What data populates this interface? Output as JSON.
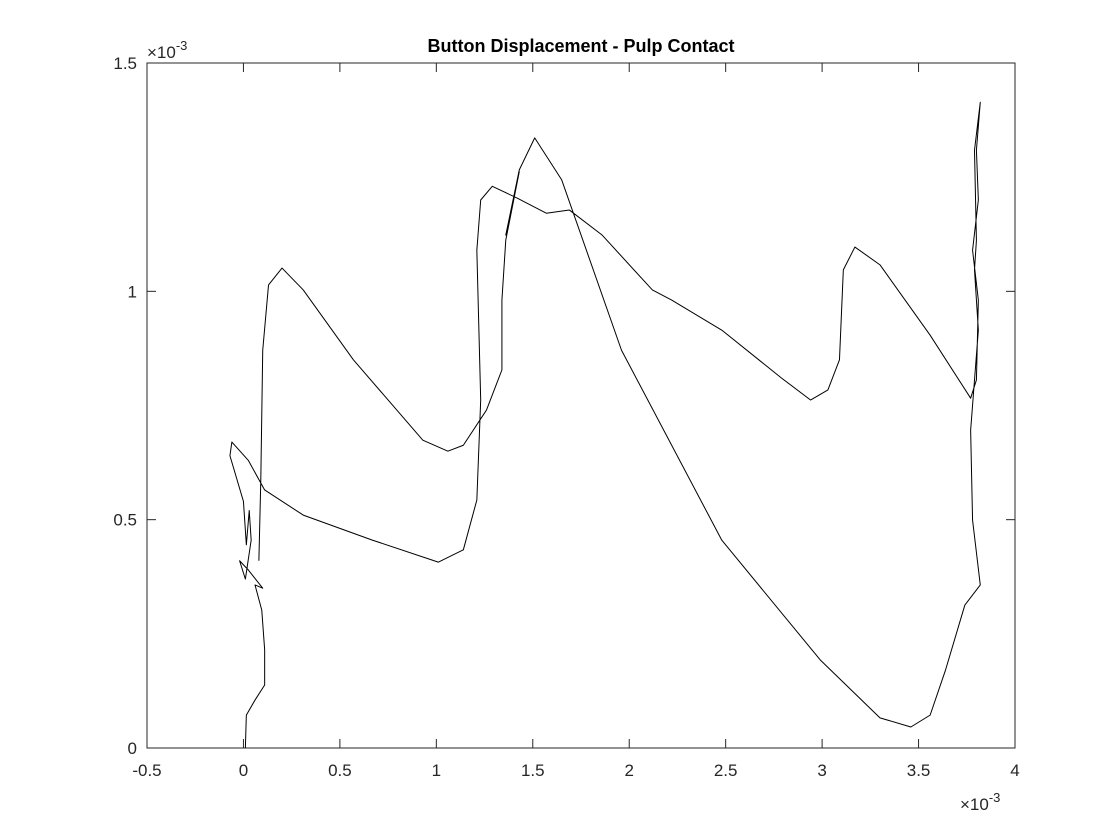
{
  "chart_data": {
    "type": "line",
    "title": "Button Displacement - Pulp Contact",
    "x": [
      0.01,
      0.015,
      0.06,
      0.11,
      0.11,
      0.095,
      0.06,
      0.1,
      0.025,
      -0.02,
      0.01,
      0.04,
      0.03,
      0.015,
      0.0,
      -0.07,
      -0.06,
      0.025,
      0.11,
      0.31,
      0.67,
      1.01,
      1.14,
      1.21,
      1.23,
      1.21,
      1.23,
      1.29,
      1.42,
      1.57,
      1.69,
      1.86,
      2.12,
      2.22,
      2.48,
      2.79,
      2.94,
      3.03,
      3.09,
      3.11,
      3.17,
      3.3,
      3.56,
      3.77,
      3.8,
      3.81,
      3.78,
      3.81,
      3.8,
      3.82,
      3.79,
      3.8,
      3.79,
      3.81,
      3.77,
      3.78,
      3.82,
      3.74,
      3.64,
      3.56,
      3.46,
      3.3,
      2.99,
      2.48,
      1.96,
      1.65,
      1.51,
      1.43,
      1.36,
      1.4,
      1.43,
      1.36,
      1.34,
      1.34,
      1.26,
      1.14,
      1.06,
      0.93,
      0.57,
      0.31,
      0.2,
      0.13,
      0.1,
      0.09,
      0.08
    ],
    "values": [
      0.0,
      0.072,
      0.105,
      0.138,
      0.215,
      0.302,
      0.357,
      0.35,
      0.39,
      0.41,
      0.37,
      0.455,
      0.52,
      0.445,
      0.54,
      0.64,
      0.67,
      0.63,
      0.565,
      0.51,
      0.455,
      0.407,
      0.434,
      0.543,
      0.762,
      1.09,
      1.2,
      1.23,
      1.204,
      1.171,
      1.178,
      1.123,
      1.003,
      0.981,
      0.915,
      0.81,
      0.762,
      0.784,
      0.85,
      1.047,
      1.097,
      1.058,
      0.904,
      0.766,
      0.806,
      0.981,
      1.09,
      1.2,
      1.309,
      1.414,
      1.309,
      1.112,
      1.047,
      0.915,
      0.696,
      0.499,
      0.357,
      0.313,
      0.171,
      0.072,
      0.046,
      0.066,
      0.193,
      0.455,
      0.871,
      1.244,
      1.336,
      1.266,
      1.123,
      1.2,
      1.262,
      1.112,
      0.981,
      0.828,
      0.74,
      0.663,
      0.65,
      0.674,
      0.85,
      1.003,
      1.051,
      1.014,
      0.871,
      0.587,
      0.41
    ],
    "color": "#000000",
    "xlim": [
      -0.5,
      4
    ],
    "xticks": [
      -0.5,
      0,
      0.5,
      1,
      1.5,
      2,
      2.5,
      3,
      3.5,
      4
    ],
    "ylim": [
      0,
      1.5
    ],
    "yticks": [
      0,
      0.5,
      1,
      1.5
    ],
    "x_scale_label": {
      "base": "×10",
      "exponent": "-3"
    },
    "y_scale_label": {
      "base": "×10",
      "exponent": "-3"
    },
    "grid": false
  }
}
